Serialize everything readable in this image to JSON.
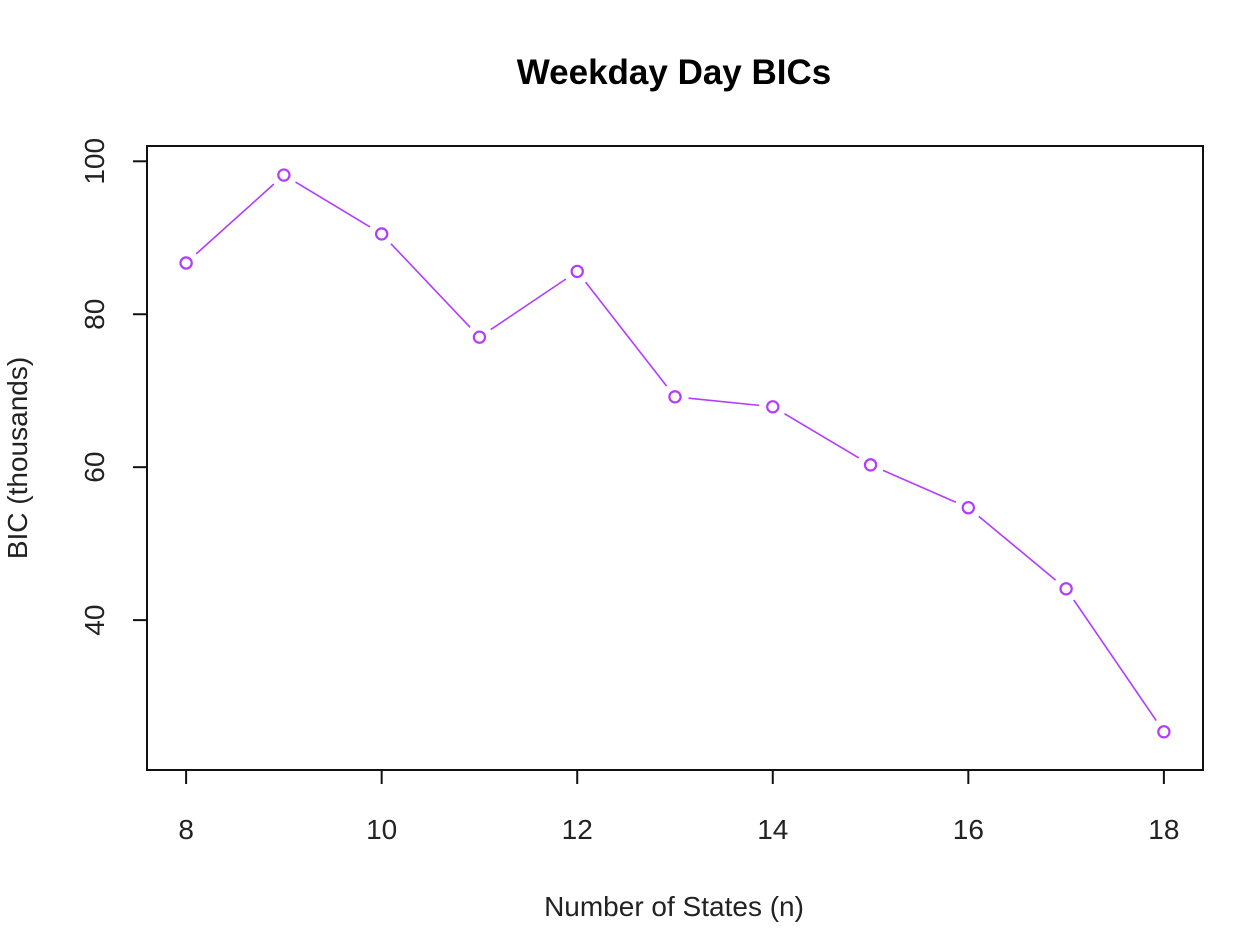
{
  "chart_data": {
    "type": "line",
    "title": "Weekday Day BICs",
    "xlabel": "Number of States (n)",
    "ylabel": "BIC (thousands)",
    "x": [
      8,
      9,
      10,
      11,
      12,
      13,
      14,
      15,
      16,
      17,
      18
    ],
    "series": [
      {
        "values": [
          86.7,
          98.2,
          90.5,
          77.0,
          85.6,
          69.2,
          67.9,
          60.3,
          54.7,
          44.1,
          25.4
        ],
        "color": "#b23cff"
      }
    ],
    "xlim": [
      7.6,
      18.4
    ],
    "ylim": [
      20.4,
      102.0
    ],
    "xticks": [
      8,
      10,
      12,
      14,
      16,
      18
    ],
    "yticks": [
      40,
      60,
      80,
      100
    ],
    "marker": "open-circle",
    "grid": false,
    "legend": "none"
  }
}
